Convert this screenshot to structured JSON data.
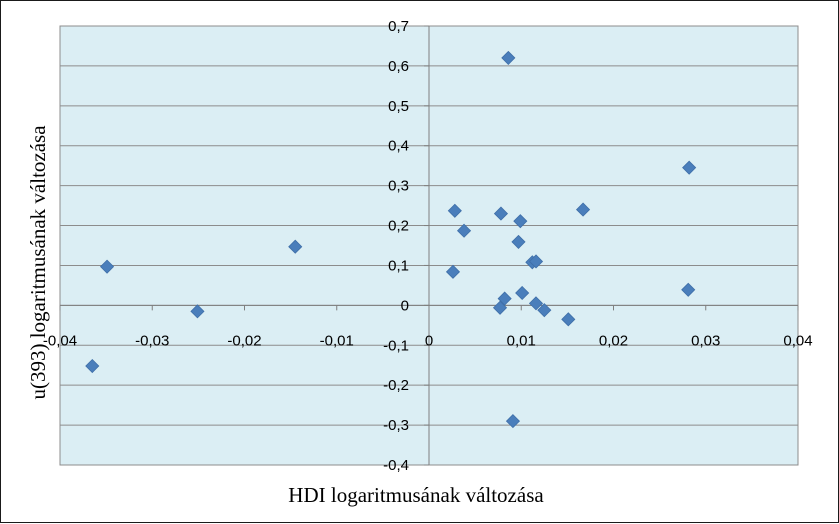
{
  "chart_data": {
    "type": "scatter",
    "title": "",
    "xlabel": "HDI logaritmusának változása",
    "ylabel": "u(393) logaritmusának változása",
    "xlim": [
      -0.04,
      0.04
    ],
    "ylim": [
      -0.4,
      0.7
    ],
    "x_ticks": [
      "-0,04",
      "-0,03",
      "-0,02",
      "-0,01",
      "0",
      "0,01",
      "0,02",
      "0,03",
      "0,04"
    ],
    "x_tick_values": [
      -0.04,
      -0.03,
      -0.02,
      -0.01,
      0,
      0.01,
      0.02,
      0.03,
      0.04
    ],
    "y_ticks": [
      "0,7",
      "0,6",
      "0,5",
      "0,4",
      "0,3",
      "0,2",
      "0,1",
      "0",
      "-0,1",
      "-0,2",
      "-0,3",
      "-0,4"
    ],
    "y_tick_values": [
      0.7,
      0.6,
      0.5,
      0.4,
      0.3,
      0.2,
      0.1,
      0,
      -0.1,
      -0.2,
      -0.3,
      -0.4
    ],
    "grid": "horizontal",
    "legend": "none",
    "plot_background": "#dbeef4",
    "marker_color": "#4a7ebb",
    "marker_shape": "diamond",
    "series": [
      {
        "points": [
          [
            0.0086,
            0.62
          ],
          [
            0.0282,
            0.345
          ],
          [
            0.0167,
            0.24
          ],
          [
            0.0028,
            0.237
          ],
          [
            0.0078,
            0.23
          ],
          [
            0.0099,
            0.211
          ],
          [
            0.0038,
            0.187
          ],
          [
            -0.0145,
            0.147
          ],
          [
            0.0097,
            0.159
          ],
          [
            0.0112,
            0.108
          ],
          [
            0.0116,
            0.11
          ],
          [
            -0.0349,
            0.097
          ],
          [
            0.0026,
            0.084
          ],
          [
            0.0281,
            0.039
          ],
          [
            0.0101,
            0.031
          ],
          [
            0.0082,
            0.017
          ],
          [
            0.0116,
            0.005
          ],
          [
            0.0077,
            -0.006
          ],
          [
            0.0125,
            -0.012
          ],
          [
            -0.0251,
            -0.015
          ],
          [
            0.0151,
            -0.035
          ],
          [
            -0.0365,
            -0.152
          ],
          [
            0.0091,
            -0.29
          ]
        ]
      }
    ]
  }
}
